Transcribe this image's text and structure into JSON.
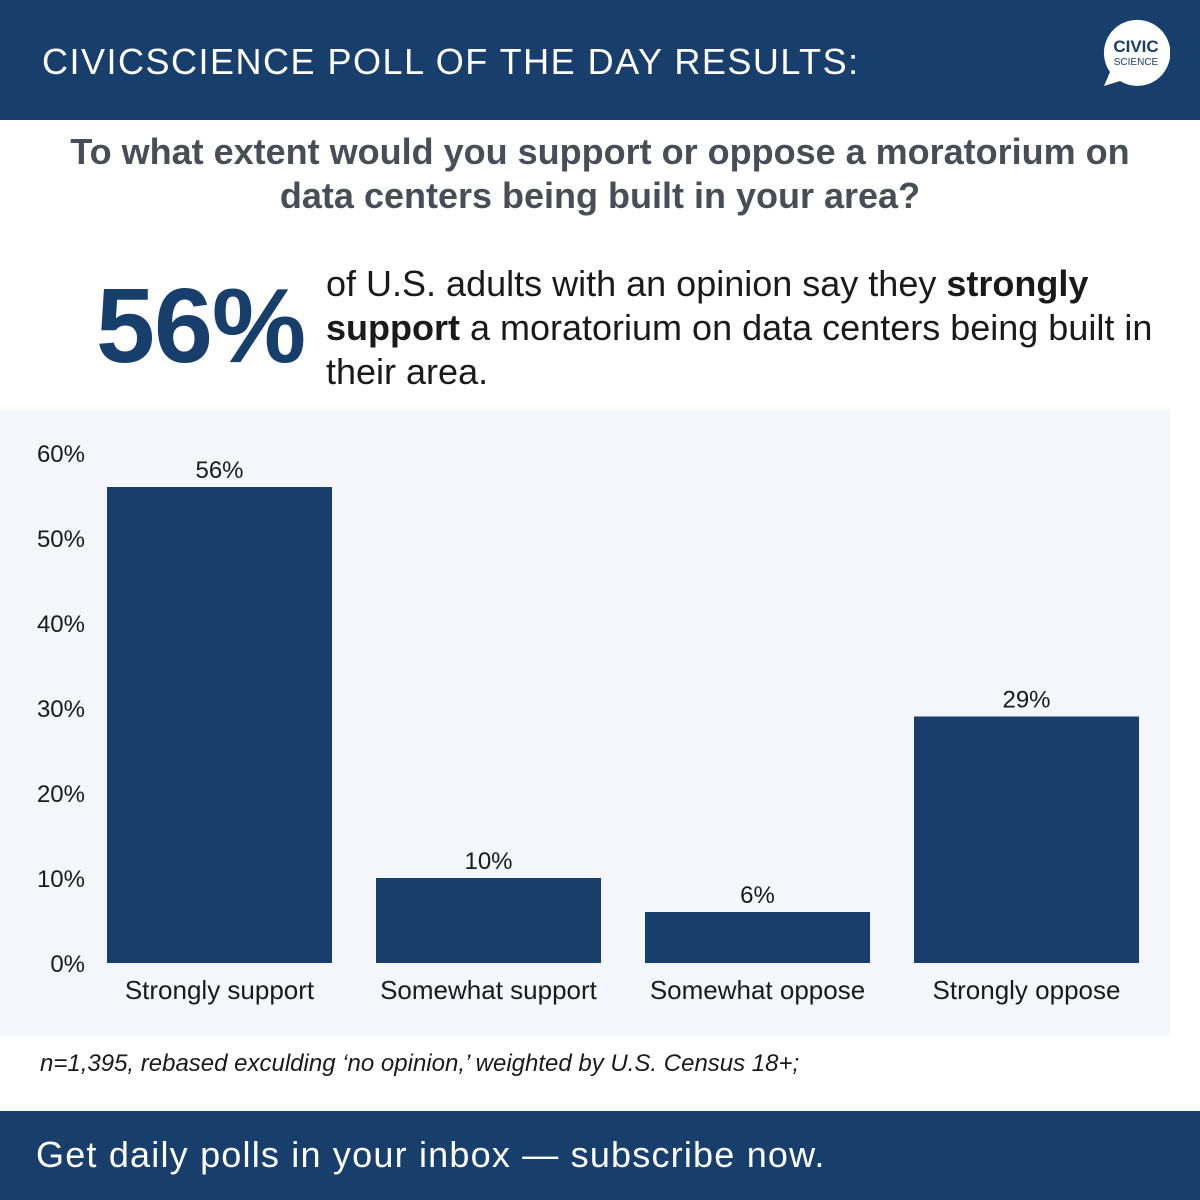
{
  "header": {
    "title": "CIVICSCIENCE POLL OF THE DAY RESULTS:",
    "logo_line1": "CIVIC",
    "logo_line2": "SCIENCE"
  },
  "question": "To what extent would you support or oppose a moratorium on data centers being built in your area?",
  "highlight": {
    "value": "56%",
    "text_before": "of U.S. adults with an opinion say they ",
    "text_bold": "strongly support",
    "text_after": " a moratorium on data centers being built in their area."
  },
  "footnote": "n=1,395, rebased exculding ‘no opinion,’ weighted by U.S. Census 18+;",
  "cta": "Get daily polls in your inbox — subscribe now.",
  "colors": {
    "brand": "#183e6c",
    "bar": "#183e6c",
    "panel": "#f4f6fb",
    "question_text": "#4a4d55"
  },
  "chart_data": {
    "type": "bar",
    "categories": [
      "Strongly support",
      "Somewhat support",
      "Somewhat oppose",
      "Strongly oppose"
    ],
    "values": [
      56,
      10,
      6,
      29
    ],
    "data_labels": [
      "56%",
      "10%",
      "6%",
      "29%"
    ],
    "ylim": [
      0,
      60
    ],
    "yticks": [
      0,
      10,
      20,
      30,
      40,
      50,
      60
    ],
    "ytick_labels": [
      "0%",
      "10%",
      "20%",
      "30%",
      "40%",
      "50%",
      "60%"
    ],
    "grid": false,
    "legend": false
  }
}
